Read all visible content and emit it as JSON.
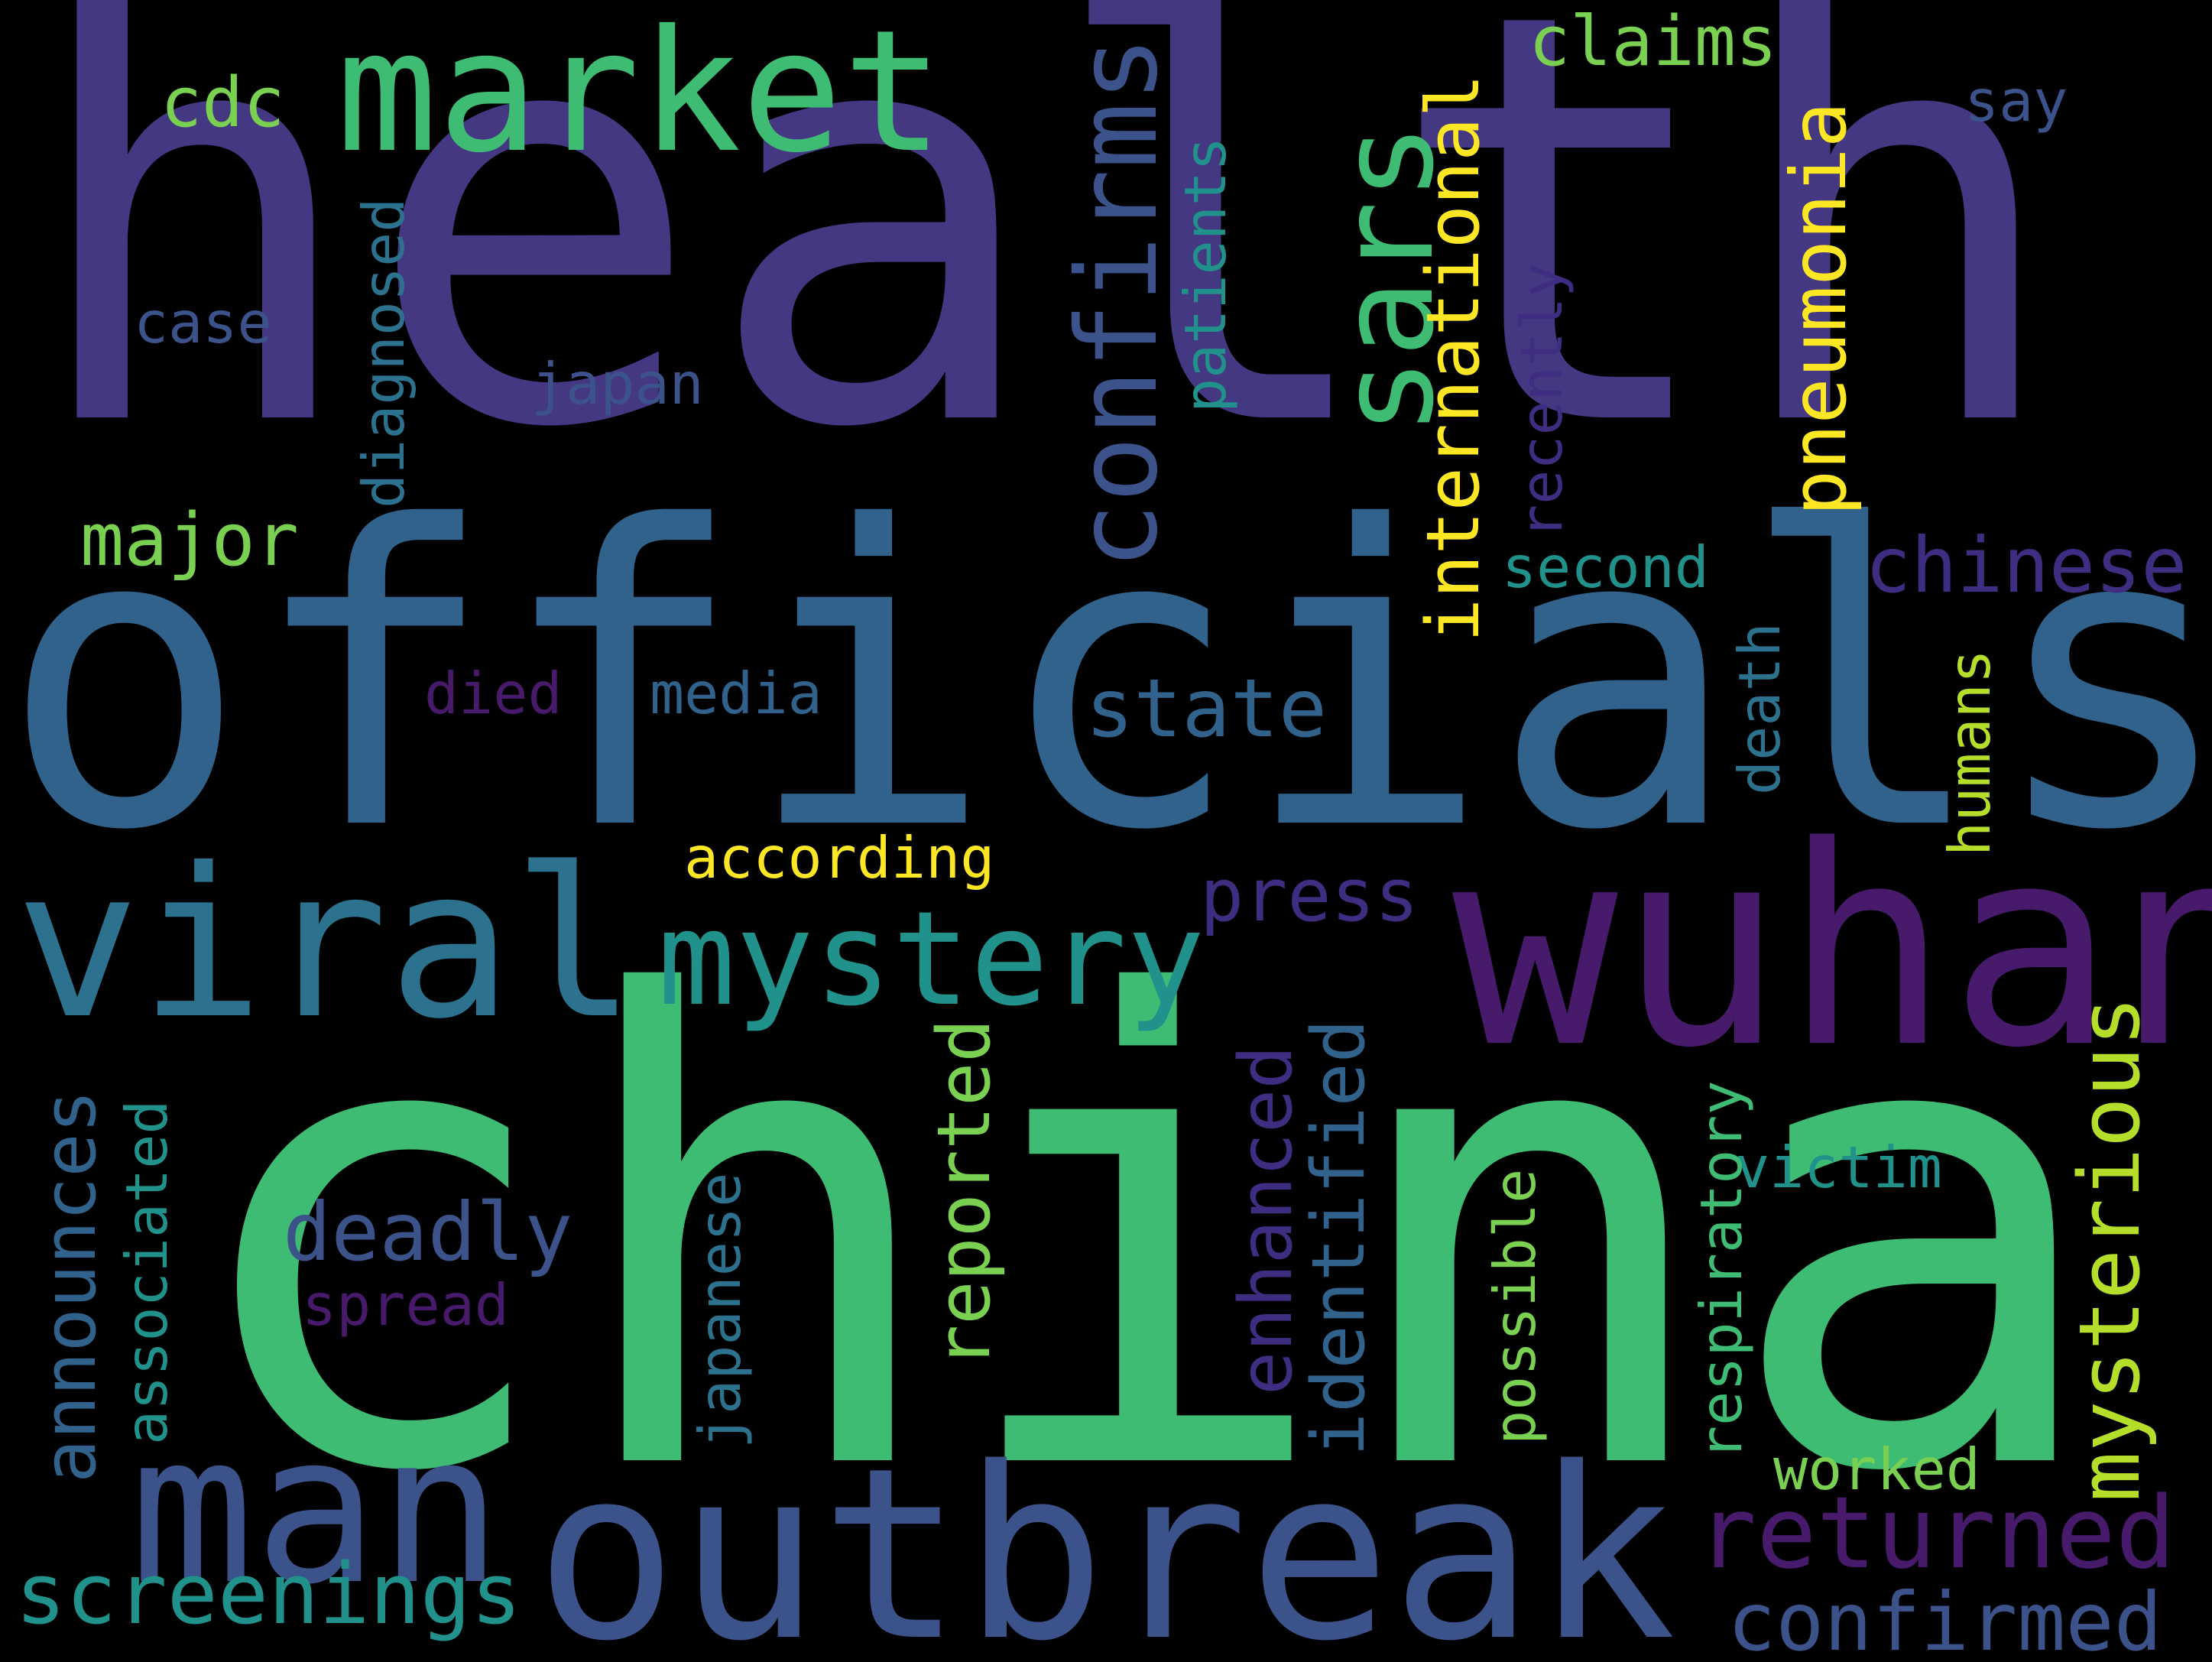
{
  "colors": {
    "background": "#000000",
    "indigo": "#453882",
    "blue_dark": "#3b528b",
    "blue": "#30628c",
    "teal_blue": "#2c728e",
    "teal": "#21918c",
    "green": "#3fbc73",
    "light_green": "#7ad151",
    "yellow_green": "#b5de2b",
    "yellow": "#fde725",
    "purple": "#481a6c",
    "violet": "#3e2d80"
  },
  "words": {
    "health": "health",
    "officials": "officials",
    "china": "china",
    "wuhan": "wuhan",
    "outbreak": "outbreak",
    "viral": "viral",
    "market": "market",
    "man": "man",
    "mystery": "mystery",
    "sars": "sars",
    "confirms": "confirms",
    "returned": "returned",
    "mysterious": "mysterious",
    "pneumonia": "pneumonia",
    "international": "international",
    "identified": "identified",
    "enhanced": "enhanced",
    "reported": "reported",
    "announces": "announces",
    "associated": "associated",
    "screenings": "screenings",
    "confirmed": "confirmed",
    "chinese": "chinese",
    "deadly": "deadly",
    "state": "state",
    "press": "press",
    "major": "major",
    "claims": "claims",
    "cdc": "cdc",
    "say": "say",
    "case": "case",
    "japan": "japan",
    "diagnosed": "diagnosed",
    "patients": "patients",
    "recently": "recently",
    "second": "second",
    "died": "died",
    "media": "media",
    "according": "according",
    "death": "death",
    "humans": "humans",
    "spread": "spread",
    "japanese": "japanese",
    "possible": "possible",
    "respiratory": "respiratory",
    "victim": "victim",
    "worked": "worked"
  }
}
